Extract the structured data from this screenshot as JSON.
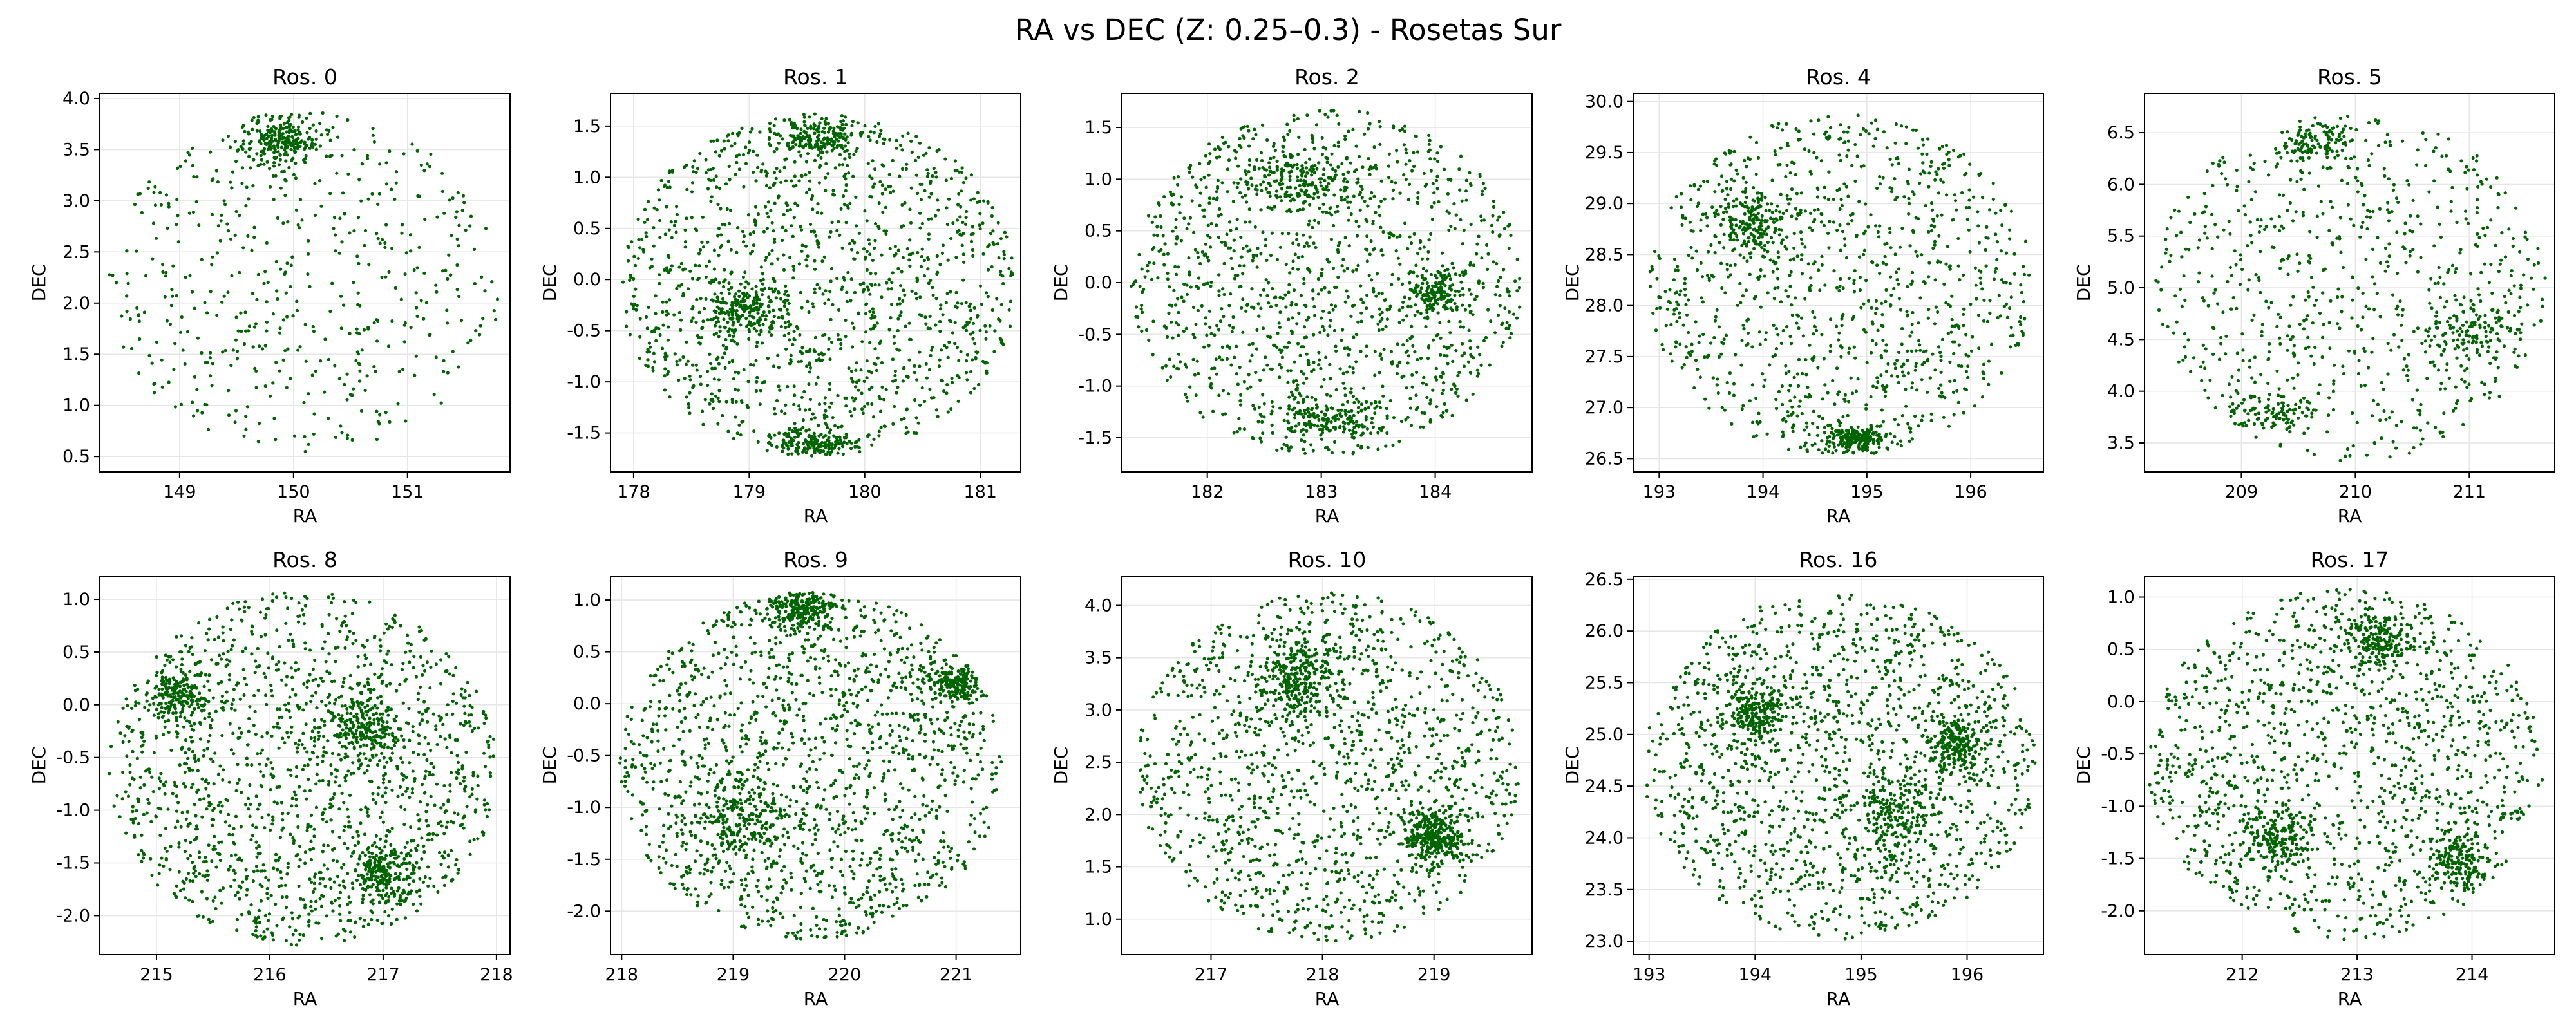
{
  "figure": {
    "title": "RA vs DEC (Z: 0.25–0.3) - Rosetas Sur"
  },
  "colors": {
    "points": "#006400",
    "grid": "#e6e6e6",
    "axes": "#000000",
    "background": "#ffffff"
  },
  "chart_data": [
    {
      "type": "scatter",
      "title": "Ros. 0",
      "xlabel": "RA",
      "ylabel": "DEC",
      "xlim": [
        148.3,
        151.9
      ],
      "ylim": [
        0.35,
        4.05
      ],
      "xticks": [
        149,
        150,
        151
      ],
      "yticks": [
        0.5,
        1.0,
        1.5,
        2.0,
        2.5,
        3.0,
        3.5,
        4.0
      ],
      "grid": true,
      "center": [
        150.1,
        2.2
      ],
      "radius_ra": 1.72,
      "radius_dec": 1.68,
      "approx_points": 750,
      "clusters": [
        [
          149.9,
          3.6,
          0.3,
          0.25
        ]
      ]
    },
    {
      "type": "scatter",
      "title": "Ros. 1",
      "xlabel": "RA",
      "ylabel": "DEC",
      "xlim": [
        177.8,
        181.35
      ],
      "ylim": [
        -1.88,
        1.82
      ],
      "xticks": [
        178,
        179,
        180,
        181
      ],
      "yticks": [
        -1.5,
        -1.0,
        -0.5,
        0.0,
        0.5,
        1.0,
        1.5
      ],
      "grid": true,
      "center": [
        179.6,
        -0.05
      ],
      "radius_ra": 1.72,
      "radius_dec": 1.68,
      "approx_points": 1900,
      "clusters": [
        [
          179.0,
          -0.3,
          0.35,
          0.3
        ],
        [
          179.6,
          1.4,
          0.4,
          0.2
        ],
        [
          179.6,
          -1.6,
          0.4,
          0.12
        ]
      ]
    },
    {
      "type": "scatter",
      "title": "Ros. 2",
      "xlabel": "RA",
      "ylabel": "DEC",
      "xlim": [
        181.25,
        184.85
      ],
      "ylim": [
        -1.83,
        1.83
      ],
      "xticks": [
        182,
        183,
        184
      ],
      "yticks": [
        -1.5,
        -1.0,
        -0.5,
        0.0,
        0.5,
        1.0,
        1.5
      ],
      "grid": true,
      "center": [
        183.05,
        0.0
      ],
      "radius_ra": 1.72,
      "radius_dec": 1.68,
      "approx_points": 1750,
      "clusters": [
        [
          182.8,
          1.0,
          0.45,
          0.3
        ],
        [
          183.1,
          -1.3,
          0.4,
          0.2
        ],
        [
          184.0,
          -0.1,
          0.25,
          0.25
        ]
      ]
    },
    {
      "type": "scatter",
      "title": "Ros. 4",
      "xlabel": "RA",
      "ylabel": "DEC",
      "xlim": [
        192.75,
        196.7
      ],
      "ylim": [
        26.37,
        30.08
      ],
      "xticks": [
        193,
        194,
        195,
        196
      ],
      "yticks": [
        26.5,
        27.0,
        27.5,
        28.0,
        28.5,
        29.0,
        29.5,
        30.0
      ],
      "grid": true,
      "center": [
        194.75,
        28.2
      ],
      "radius_ra": 1.85,
      "radius_dec": 1.68,
      "approx_points": 1450,
      "clusters": [
        [
          193.9,
          28.8,
          0.3,
          0.3
        ],
        [
          194.9,
          26.7,
          0.3,
          0.12
        ]
      ]
    },
    {
      "type": "scatter",
      "title": "Ros. 5",
      "xlabel": "RA",
      "ylabel": "DEC",
      "xlim": [
        208.15,
        211.75
      ],
      "ylim": [
        3.22,
        6.88
      ],
      "xticks": [
        209,
        210,
        211
      ],
      "yticks": [
        3.5,
        4.0,
        4.5,
        5.0,
        5.5,
        6.0,
        6.5
      ],
      "grid": true,
      "center": [
        209.95,
        5.0
      ],
      "radius_ra": 1.72,
      "radius_dec": 1.68,
      "approx_points": 1050,
      "clusters": [
        [
          209.3,
          3.8,
          0.35,
          0.2
        ],
        [
          211.0,
          4.6,
          0.35,
          0.3
        ],
        [
          209.7,
          6.4,
          0.3,
          0.2
        ]
      ]
    },
    {
      "type": "scatter",
      "title": "Ros. 8",
      "xlabel": "RA",
      "ylabel": "DEC",
      "xlim": [
        214.5,
        218.12
      ],
      "ylim": [
        -2.37,
        1.22
      ],
      "xticks": [
        215,
        216,
        217,
        218
      ],
      "yticks": [
        -2.0,
        -1.5,
        -1.0,
        -0.5,
        0.0,
        0.5,
        1.0
      ],
      "grid": true,
      "center": [
        216.3,
        -0.6
      ],
      "radius_ra": 1.72,
      "radius_dec": 1.68,
      "approx_points": 2100,
      "clusters": [
        [
          217.0,
          -1.6,
          0.3,
          0.3
        ],
        [
          216.8,
          -0.2,
          0.3,
          0.3
        ],
        [
          215.2,
          0.1,
          0.3,
          0.2
        ]
      ]
    },
    {
      "type": "scatter",
      "title": "Ros. 9",
      "xlabel": "RA",
      "ylabel": "DEC",
      "xlim": [
        217.9,
        221.58
      ],
      "ylim": [
        -2.42,
        1.23
      ],
      "xticks": [
        218,
        219,
        220,
        221
      ],
      "yticks": [
        -2.0,
        -1.5,
        -1.0,
        -0.5,
        0.0,
        0.5,
        1.0
      ],
      "grid": true,
      "center": [
        219.7,
        -0.6
      ],
      "radius_ra": 1.72,
      "radius_dec": 1.68,
      "approx_points": 2100,
      "clusters": [
        [
          219.1,
          -1.1,
          0.4,
          0.4
        ],
        [
          221.0,
          0.2,
          0.3,
          0.2
        ],
        [
          219.6,
          0.9,
          0.3,
          0.2
        ]
      ]
    },
    {
      "type": "scatter",
      "title": "Ros. 10",
      "xlabel": "RA",
      "ylabel": "DEC",
      "xlim": [
        216.2,
        219.88
      ],
      "ylim": [
        0.66,
        4.28
      ],
      "xticks": [
        217,
        218,
        219
      ],
      "yticks": [
        1.0,
        1.5,
        2.0,
        2.5,
        3.0,
        3.5,
        4.0
      ],
      "grid": true,
      "center": [
        218.05,
        2.45
      ],
      "radius_ra": 1.72,
      "radius_dec": 1.68,
      "approx_points": 1900,
      "clusters": [
        [
          217.8,
          3.3,
          0.3,
          0.4
        ],
        [
          219.0,
          1.8,
          0.3,
          0.25
        ]
      ]
    },
    {
      "type": "scatter",
      "title": "Ros. 16",
      "xlabel": "RA",
      "ylabel": "DEC",
      "xlim": [
        192.85,
        196.72
      ],
      "ylim": [
        22.87,
        26.53
      ],
      "xticks": [
        193,
        194,
        195,
        196
      ],
      "yticks": [
        23.0,
        23.5,
        24.0,
        24.5,
        25.0,
        25.5,
        26.0,
        26.5
      ],
      "grid": true,
      "center": [
        194.8,
        24.7
      ],
      "radius_ra": 1.85,
      "radius_dec": 1.68,
      "approx_points": 2050,
      "clusters": [
        [
          195.3,
          24.2,
          0.35,
          0.4
        ],
        [
          195.9,
          24.9,
          0.2,
          0.3
        ],
        [
          194.0,
          25.2,
          0.3,
          0.3
        ]
      ]
    },
    {
      "type": "scatter",
      "title": "Ros. 17",
      "xlabel": "RA",
      "ylabel": "DEC",
      "xlim": [
        211.15,
        214.72
      ],
      "ylim": [
        -2.42,
        1.2
      ],
      "xticks": [
        212,
        213,
        214
      ],
      "yticks": [
        -2.0,
        -1.5,
        -1.0,
        -0.5,
        0.0,
        0.5,
        1.0
      ],
      "grid": true,
      "center": [
        212.9,
        -0.6
      ],
      "radius_ra": 1.72,
      "radius_dec": 1.68,
      "approx_points": 1850,
      "clusters": [
        [
          213.2,
          0.6,
          0.3,
          0.25
        ],
        [
          213.9,
          -1.5,
          0.25,
          0.3
        ],
        [
          212.3,
          -1.3,
          0.3,
          0.3
        ]
      ]
    }
  ]
}
